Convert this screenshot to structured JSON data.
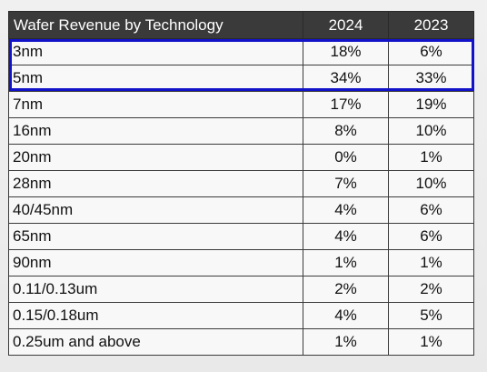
{
  "table": {
    "headers": {
      "technology": "Wafer Revenue by Technology",
      "year_a": "2024",
      "year_b": "2023"
    },
    "rows": [
      {
        "technology": "3nm",
        "year_a": "18%",
        "year_b": "6%"
      },
      {
        "technology": "5nm",
        "year_a": "34%",
        "year_b": "33%"
      },
      {
        "technology": "7nm",
        "year_a": "17%",
        "year_b": "19%"
      },
      {
        "technology": "16nm",
        "year_a": "8%",
        "year_b": "10%"
      },
      {
        "technology": "20nm",
        "year_a": "0%",
        "year_b": "1%"
      },
      {
        "technology": "28nm",
        "year_a": "7%",
        "year_b": "10%"
      },
      {
        "technology": "40/45nm",
        "year_a": "4%",
        "year_b": "6%"
      },
      {
        "technology": "65nm",
        "year_a": "4%",
        "year_b": "6%"
      },
      {
        "technology": "90nm",
        "year_a": "1%",
        "year_b": "1%"
      },
      {
        "technology": "0.11/0.13um",
        "year_a": "2%",
        "year_b": "2%"
      },
      {
        "technology": "0.15/0.18um",
        "year_a": "4%",
        "year_b": "5%"
      },
      {
        "technology": "0.25um and above",
        "year_a": "1%",
        "year_b": "1%"
      }
    ]
  },
  "colors": {
    "header_background": "#3a3a3a",
    "header_text": "#ffffff",
    "highlight_border": "#1212c8"
  }
}
